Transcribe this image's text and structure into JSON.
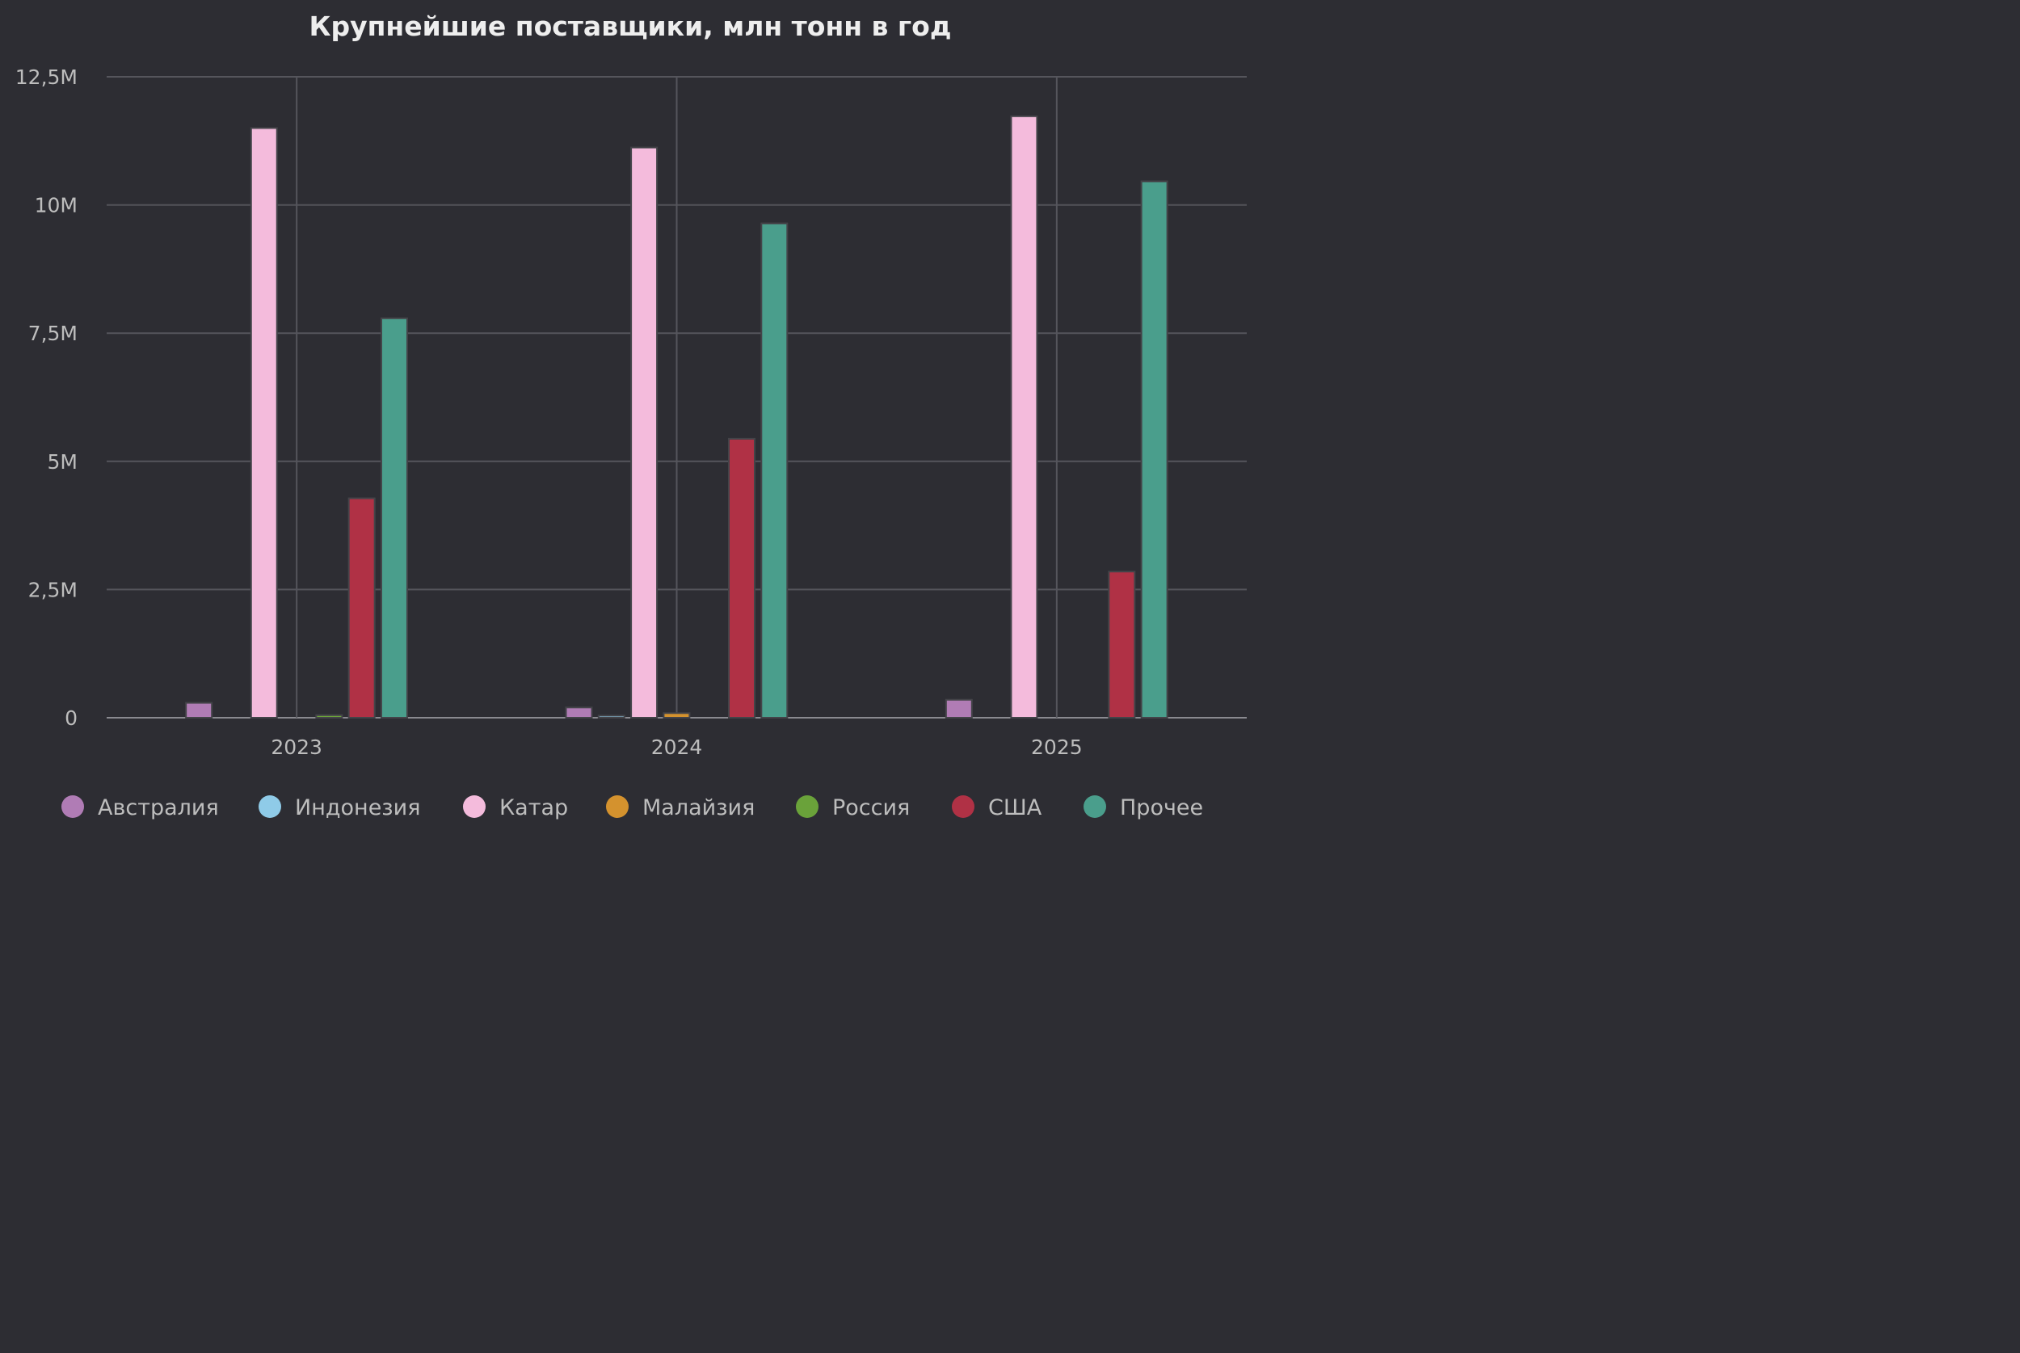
{
  "chart_data": {
    "type": "bar",
    "title": "Крупнейшие поставщики, млн тонн в год",
    "xlabel": "",
    "ylabel": "",
    "categories": [
      "2023",
      "2024",
      "2025"
    ],
    "ylim": [
      0,
      12500000
    ],
    "yticks": [
      0,
      2500000,
      5000000,
      7500000,
      10000000,
      12500000
    ],
    "ytick_labels": [
      "0",
      "2,5M",
      "5M",
      "7,5M",
      "10M",
      "12,5M"
    ],
    "grid": true,
    "legend_position": "bottom",
    "series": [
      {
        "name": "Австралия",
        "color": "#b07cb5",
        "values": [
          290000,
          200000,
          350000
        ]
      },
      {
        "name": "Индонезия",
        "color": "#8fcbe8",
        "values": [
          0,
          40000,
          0
        ]
      },
      {
        "name": "Катар",
        "color": "#f4bbdc",
        "values": [
          11500000,
          11120000,
          11730000
        ]
      },
      {
        "name": "Малайзия",
        "color": "#d4922e",
        "values": [
          0,
          90000,
          0
        ]
      },
      {
        "name": "Россия",
        "color": "#6aa23a",
        "values": [
          50000,
          0,
          0
        ]
      },
      {
        "name": "США",
        "color": "#b03145",
        "values": [
          4280000,
          5440000,
          2850000
        ]
      },
      {
        "name": "Прочее",
        "color": "#4a9e8c",
        "values": [
          7790000,
          9640000,
          10460000
        ]
      }
    ]
  }
}
